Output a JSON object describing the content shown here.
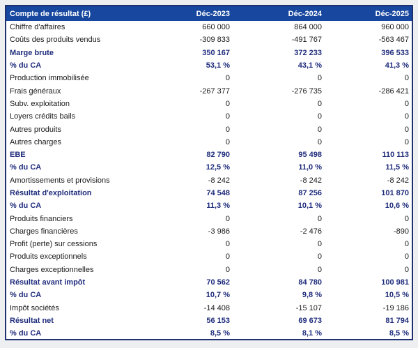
{
  "colors": {
    "page_background": "#edeff0",
    "header_background": "#17479e",
    "header_text": "#ffffff",
    "table_border": "#1e3070",
    "accent_text": "#1f2c7c",
    "body_text": "#1a1a1a",
    "row_background": "#ffffff"
  },
  "table": {
    "header": {
      "title": "Compte de résultat (£)",
      "columns": [
        "Déc-2023",
        "Déc-2024",
        "Déc-2025"
      ]
    },
    "rows": [
      {
        "label": "Chiffre d'affaires",
        "values": [
          "660 000",
          "864 000",
          "960 000"
        ],
        "bold": false
      },
      {
        "label": "Coûts des produits vendus",
        "values": [
          "-309 833",
          "-491 767",
          "-563 467"
        ],
        "bold": false
      },
      {
        "label": "Marge brute",
        "values": [
          "350 167",
          "372 233",
          "396 533"
        ],
        "bold": true
      },
      {
        "label": "% du CA",
        "values": [
          "53,1 %",
          "43,1 %",
          "41,3 %"
        ],
        "bold": true
      },
      {
        "label": "Production immobilisée",
        "values": [
          "0",
          "0",
          "0"
        ],
        "bold": false
      },
      {
        "label": "Frais généraux",
        "values": [
          "-267 377",
          "-276 735",
          "-286 421"
        ],
        "bold": false
      },
      {
        "label": "Subv. exploitation",
        "values": [
          "0",
          "0",
          "0"
        ],
        "bold": false
      },
      {
        "label": "Loyers crédits bails",
        "values": [
          "0",
          "0",
          "0"
        ],
        "bold": false
      },
      {
        "label": "Autres produits",
        "values": [
          "0",
          "0",
          "0"
        ],
        "bold": false
      },
      {
        "label": "Autres charges",
        "values": [
          "0",
          "0",
          "0"
        ],
        "bold": false
      },
      {
        "label": "EBE",
        "values": [
          "82 790",
          "95 498",
          "110 113"
        ],
        "bold": true
      },
      {
        "label": "% du CA",
        "values": [
          "12,5 %",
          "11,0 %",
          "11,5 %"
        ],
        "bold": true
      },
      {
        "label": "Amortissements et provisions",
        "values": [
          "-8 242",
          "-8 242",
          "-8 242"
        ],
        "bold": false
      },
      {
        "label": "Résultat d'exploitation",
        "values": [
          "74 548",
          "87 256",
          "101 870"
        ],
        "bold": true
      },
      {
        "label": "% du CA",
        "values": [
          "11,3 %",
          "10,1 %",
          "10,6 %"
        ],
        "bold": true
      },
      {
        "label": "Produits financiers",
        "values": [
          "0",
          "0",
          "0"
        ],
        "bold": false
      },
      {
        "label": "Charges financières",
        "values": [
          "-3 986",
          "-2 476",
          "-890"
        ],
        "bold": false
      },
      {
        "label": "Profit (perte) sur cessions",
        "values": [
          "0",
          "0",
          "0"
        ],
        "bold": false
      },
      {
        "label": "Produits exceptionnels",
        "values": [
          "0",
          "0",
          "0"
        ],
        "bold": false
      },
      {
        "label": "Charges exceptionnelles",
        "values": [
          "0",
          "0",
          "0"
        ],
        "bold": false
      },
      {
        "label": "Résultat avant impôt",
        "values": [
          "70 562",
          "84 780",
          "100 981"
        ],
        "bold": true
      },
      {
        "label": "% du CA",
        "values": [
          "10,7 %",
          "9,8 %",
          "10,5 %"
        ],
        "bold": true
      },
      {
        "label": "Impôt sociétés",
        "values": [
          "-14 408",
          "-15 107",
          "-19 186"
        ],
        "bold": false
      },
      {
        "label": "Résultat net",
        "values": [
          "56 153",
          "69 673",
          "81 794"
        ],
        "bold": true
      },
      {
        "label": "% du CA",
        "values": [
          "8,5 %",
          "8,1 %",
          "8,5 %"
        ],
        "bold": true
      }
    ]
  }
}
